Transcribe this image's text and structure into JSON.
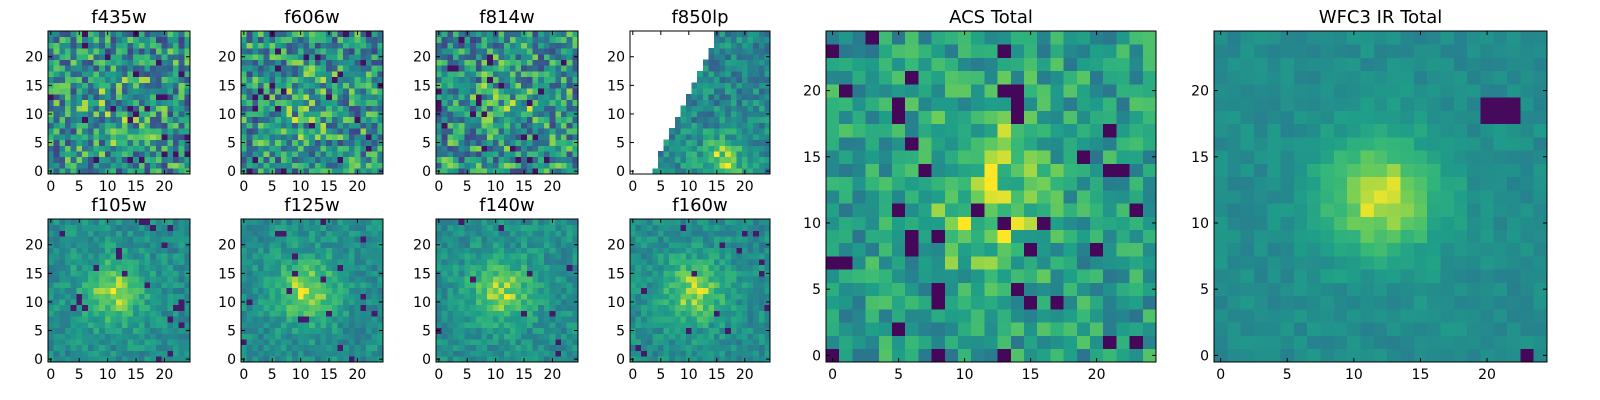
{
  "chart_data": [
    {
      "type": "heatmap",
      "title": "f435w",
      "colormap": "viridis",
      "grid": "25x25",
      "xticks": [
        "0",
        "5",
        "10",
        "15",
        "20"
      ],
      "yticks": [
        "0",
        "5",
        "10",
        "15",
        "20"
      ],
      "xlim": [
        0,
        24
      ],
      "ylim": [
        0,
        24
      ],
      "description_values": "noisy, nearly uniform field around mid-to-high values"
    },
    {
      "type": "heatmap",
      "title": "f606w",
      "colormap": "viridis",
      "grid": "25x25",
      "xticks": [
        "0",
        "5",
        "10",
        "15",
        "20"
      ],
      "yticks": [
        "0",
        "5",
        "10",
        "15",
        "20"
      ],
      "xlim": [
        0,
        24
      ],
      "ylim": [
        0,
        24
      ]
    },
    {
      "type": "heatmap",
      "title": "f814w",
      "colormap": "viridis",
      "grid": "25x25",
      "xticks": [
        "0",
        "5",
        "10",
        "15",
        "20"
      ],
      "yticks": [
        "0",
        "5",
        "10",
        "15",
        "20"
      ],
      "xlim": [
        0,
        24
      ],
      "ylim": [
        0,
        24
      ]
    },
    {
      "type": "heatmap",
      "title": "f850lp",
      "colormap": "viridis",
      "grid": "25x25",
      "xticks": [
        "0",
        "5",
        "10",
        "15",
        "20"
      ],
      "yticks": [
        "0",
        "5",
        "10",
        "15",
        "20"
      ],
      "xlim": [
        0,
        24
      ],
      "ylim": [
        0,
        24
      ],
      "masked_region": "upper-left triangle"
    },
    {
      "type": "heatmap",
      "title": "f105w",
      "colormap": "viridis",
      "grid": "25x25",
      "xticks": [
        "0",
        "5",
        "10",
        "15",
        "20"
      ],
      "yticks": [
        "0",
        "5",
        "10",
        "15",
        "20"
      ],
      "xlim": [
        0,
        24
      ],
      "ylim": [
        0,
        24
      ]
    },
    {
      "type": "heatmap",
      "title": "f125w",
      "colormap": "viridis",
      "grid": "25x25",
      "xticks": [
        "0",
        "5",
        "10",
        "15",
        "20"
      ],
      "yticks": [
        "0",
        "5",
        "10",
        "15",
        "20"
      ],
      "xlim": [
        0,
        24
      ],
      "ylim": [
        0,
        24
      ]
    },
    {
      "type": "heatmap",
      "title": "f140w",
      "colormap": "viridis",
      "grid": "25x25",
      "xticks": [
        "0",
        "5",
        "10",
        "15",
        "20"
      ],
      "yticks": [
        "0",
        "5",
        "10",
        "15",
        "20"
      ],
      "xlim": [
        0,
        24
      ],
      "ylim": [
        0,
        24
      ]
    },
    {
      "type": "heatmap",
      "title": "f160w",
      "colormap": "viridis",
      "grid": "25x25",
      "xticks": [
        "0",
        "5",
        "10",
        "15",
        "20"
      ],
      "yticks": [
        "0",
        "5",
        "10",
        "15",
        "20"
      ],
      "xlim": [
        0,
        24
      ],
      "ylim": [
        0,
        24
      ]
    },
    {
      "type": "heatmap",
      "title": "ACS Total",
      "colormap": "viridis",
      "grid": "25x25",
      "xticks": [
        "0",
        "5",
        "10",
        "15",
        "20"
      ],
      "yticks": [
        "0",
        "5",
        "10",
        "15",
        "20"
      ],
      "xlim": [
        0,
        24
      ],
      "ylim": [
        0,
        24
      ]
    },
    {
      "type": "heatmap",
      "title": "WFC3 IR Total",
      "colormap": "viridis",
      "grid": "25x25",
      "xticks": [
        "0",
        "5",
        "10",
        "15",
        "20"
      ],
      "yticks": [
        "0",
        "5",
        "10",
        "15",
        "20"
      ],
      "xlim": [
        0,
        24
      ],
      "ylim": [
        0,
        24
      ]
    }
  ]
}
